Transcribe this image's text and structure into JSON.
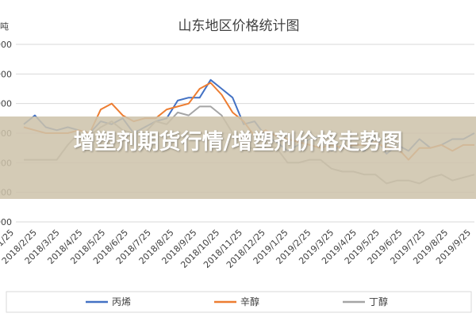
{
  "overlay": {
    "title": "增塑剂期货行情/增塑剂价格走势图"
  },
  "chart_data": {
    "type": "line",
    "title": "山东地区价格统计图",
    "unit": "吨",
    "y_tick_labels": [
      "000",
      "000",
      "000",
      "000",
      "000",
      "000",
      "000"
    ],
    "x_tick_labels": [
      "2018/1/25",
      "2018/2/25",
      "2018/3/25",
      "2018/4/25",
      "2018/5/25",
      "2018/6/25",
      "2018/7/25",
      "2018/8/25",
      "2018/9/25",
      "2018/10/25",
      "2018/11/25",
      "2018/12/25",
      "2019/1/25",
      "2019/2/25",
      "2019/3/25",
      "2019/4/25",
      "2019/5/25",
      "2019/6/25",
      "2019/7/25",
      "2019/8/25",
      "2019/9/25"
    ],
    "ylim": [
      0,
      6
    ],
    "grid": true,
    "legend_position": "bottom",
    "x": [
      "2018/1/10",
      "2018/1/25",
      "2018/2/10",
      "2018/2/25",
      "2018/3/10",
      "2018/3/25",
      "2018/4/10",
      "2018/4/25",
      "2018/5/10",
      "2018/5/25",
      "2018/6/10",
      "2018/6/25",
      "2018/7/10",
      "2018/7/25",
      "2018/8/10",
      "2018/8/25",
      "2018/9/10",
      "2018/9/25",
      "2018/10/10",
      "2018/10/25",
      "2018/11/10",
      "2018/11/25",
      "2018/12/10",
      "2018/12/25",
      "2019/1/10",
      "2019/1/25",
      "2019/2/10",
      "2019/2/25",
      "2019/3/10",
      "2019/3/25",
      "2019/4/10",
      "2019/4/25",
      "2019/5/10",
      "2019/5/25",
      "2019/6/10",
      "2019/6/25",
      "2019/7/10",
      "2019/7/25",
      "2019/8/10",
      "2019/8/25",
      "2019/9/10",
      "2019/9/25"
    ],
    "series": [
      {
        "name": "丙烯",
        "color": "#4472C4",
        "values": [
          3.3,
          3.6,
          3.2,
          3.1,
          3.2,
          3.1,
          3.0,
          3.4,
          3.3,
          3.5,
          3.0,
          3.2,
          3.4,
          3.5,
          4.1,
          4.2,
          4.2,
          4.8,
          4.5,
          4.2,
          3.3,
          3.4,
          2.9,
          2.7,
          2.4,
          2.6,
          2.8,
          2.9,
          2.4,
          2.6,
          2.5,
          2.4,
          2.9,
          2.3,
          2.6,
          2.4,
          2.8,
          2.5,
          2.6,
          2.8,
          2.8,
          3.0
        ]
      },
      {
        "name": "辛醇",
        "color": "#ED7D31",
        "values": [
          3.2,
          3.1,
          3.0,
          3.0,
          3.0,
          3.1,
          3.0,
          3.8,
          4.0,
          3.6,
          3.4,
          3.5,
          3.5,
          3.8,
          3.9,
          4.0,
          4.5,
          4.7,
          4.3,
          3.7,
          3.4,
          2.9,
          3.1,
          2.9,
          2.8,
          2.7,
          2.6,
          2.5,
          2.6,
          2.5,
          2.6,
          2.6,
          2.7,
          2.5,
          2.5,
          2.1,
          2.5,
          2.5,
          2.6,
          2.4,
          2.6,
          2.6
        ]
      },
      {
        "name": "丁醇",
        "color": "#A5A5A5",
        "values": [
          2.1,
          2.1,
          2.1,
          2.1,
          2.6,
          3.0,
          2.9,
          3.2,
          3.4,
          3.1,
          3.0,
          3.0,
          3.4,
          3.3,
          3.7,
          3.6,
          3.9,
          3.9,
          3.6,
          3.0,
          2.5,
          2.5,
          2.6,
          2.5,
          2.0,
          2.0,
          2.1,
          2.1,
          1.8,
          1.7,
          1.7,
          1.6,
          1.6,
          1.3,
          1.4,
          1.4,
          1.3,
          1.5,
          1.6,
          1.4,
          1.5,
          1.6
        ]
      }
    ]
  }
}
